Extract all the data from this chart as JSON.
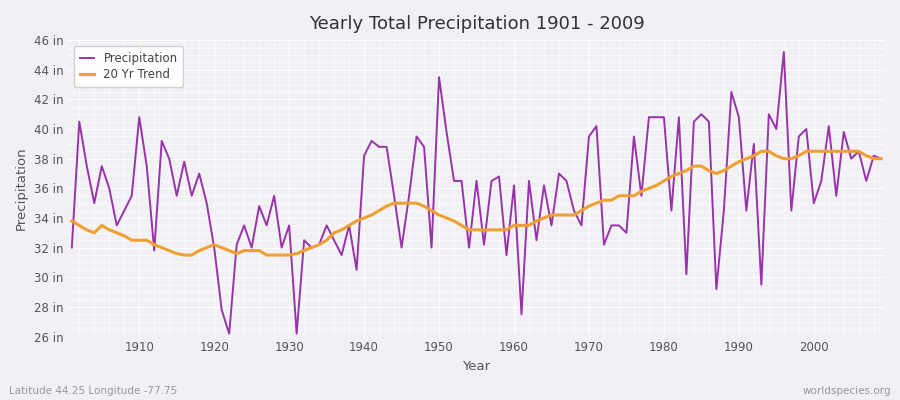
{
  "title": "Yearly Total Precipitation 1901 - 2009",
  "xlabel": "Year",
  "ylabel": "Precipitation",
  "subtitle": "Latitude 44.25 Longitude -77.75",
  "watermark": "worldspecies.org",
  "precip_color": "#9933aa",
  "trend_color": "#f0a030",
  "bg_color": "#f0f0f5",
  "ylim": [
    26,
    46
  ],
  "ytick_labels": [
    "26 in",
    "28 in",
    "30 in",
    "32 in",
    "34 in",
    "36 in",
    "38 in",
    "40 in",
    "42 in",
    "44 in",
    "46 in"
  ],
  "ytick_values": [
    26,
    28,
    30,
    32,
    34,
    36,
    38,
    40,
    42,
    44,
    46
  ],
  "xticks": [
    1910,
    1920,
    1930,
    1940,
    1950,
    1960,
    1970,
    1980,
    1990,
    2000
  ],
  "years": [
    1901,
    1902,
    1903,
    1904,
    1905,
    1906,
    1907,
    1908,
    1909,
    1910,
    1911,
    1912,
    1913,
    1914,
    1915,
    1916,
    1917,
    1918,
    1919,
    1920,
    1921,
    1922,
    1923,
    1924,
    1925,
    1926,
    1927,
    1928,
    1929,
    1930,
    1931,
    1932,
    1933,
    1934,
    1935,
    1936,
    1937,
    1938,
    1939,
    1940,
    1941,
    1942,
    1943,
    1944,
    1945,
    1946,
    1947,
    1948,
    1949,
    1950,
    1951,
    1952,
    1953,
    1954,
    1955,
    1956,
    1957,
    1958,
    1959,
    1960,
    1961,
    1962,
    1963,
    1964,
    1965,
    1966,
    1967,
    1968,
    1969,
    1970,
    1971,
    1972,
    1973,
    1974,
    1975,
    1976,
    1977,
    1978,
    1979,
    1980,
    1981,
    1982,
    1983,
    1984,
    1985,
    1986,
    1987,
    1988,
    1989,
    1990,
    1991,
    1992,
    1993,
    1994,
    1995,
    1996,
    1997,
    1998,
    1999,
    2000,
    2001,
    2002,
    2003,
    2004,
    2005,
    2006,
    2007,
    2008,
    2009
  ],
  "precip": [
    32.0,
    40.5,
    37.5,
    35.0,
    37.5,
    36.0,
    33.5,
    34.5,
    35.5,
    40.8,
    37.5,
    31.8,
    39.2,
    38.0,
    35.5,
    37.8,
    35.5,
    37.0,
    35.0,
    32.0,
    27.8,
    26.2,
    32.2,
    33.5,
    32.0,
    34.8,
    33.5,
    35.5,
    32.0,
    33.5,
    26.2,
    32.5,
    32.0,
    32.2,
    33.5,
    32.5,
    31.5,
    33.5,
    30.5,
    38.2,
    39.2,
    38.8,
    38.8,
    35.5,
    32.0,
    35.5,
    39.5,
    38.8,
    32.0,
    43.5,
    39.8,
    36.5,
    36.5,
    32.0,
    36.5,
    32.2,
    36.5,
    36.8,
    31.5,
    36.2,
    27.5,
    36.5,
    32.5,
    36.2,
    33.5,
    37.0,
    36.5,
    34.5,
    33.5,
    39.5,
    40.2,
    32.2,
    33.5,
    33.5,
    33.0,
    39.5,
    35.5,
    40.8,
    40.8,
    40.8,
    34.5,
    40.8,
    30.2,
    40.5,
    41.0,
    40.5,
    29.2,
    34.5,
    42.5,
    40.8,
    34.5,
    39.0,
    29.5,
    41.0,
    40.0,
    45.2,
    34.5,
    39.5,
    40.0,
    35.0,
    36.5,
    40.2,
    35.5,
    39.8,
    38.0,
    38.5,
    36.5,
    38.2,
    38.0
  ],
  "trend": [
    33.8,
    33.5,
    33.2,
    33.0,
    33.5,
    33.2,
    33.0,
    32.8,
    32.5,
    32.5,
    32.5,
    32.2,
    32.0,
    31.8,
    31.6,
    31.5,
    31.5,
    31.8,
    32.0,
    32.2,
    32.0,
    31.8,
    31.6,
    31.8,
    31.8,
    31.8,
    31.5,
    31.5,
    31.5,
    31.5,
    31.6,
    31.8,
    32.0,
    32.2,
    32.5,
    33.0,
    33.2,
    33.5,
    33.8,
    34.0,
    34.2,
    34.5,
    34.8,
    35.0,
    35.0,
    35.0,
    35.0,
    34.8,
    34.5,
    34.2,
    34.0,
    33.8,
    33.5,
    33.2,
    33.2,
    33.2,
    33.2,
    33.2,
    33.2,
    33.5,
    33.5,
    33.5,
    33.8,
    34.0,
    34.2,
    34.2,
    34.2,
    34.2,
    34.5,
    34.8,
    35.0,
    35.2,
    35.2,
    35.5,
    35.5,
    35.5,
    35.8,
    36.0,
    36.2,
    36.5,
    36.8,
    37.0,
    37.2,
    37.5,
    37.5,
    37.2,
    37.0,
    37.2,
    37.5,
    37.8,
    38.0,
    38.2,
    38.5,
    38.5,
    38.2,
    38.0,
    38.0,
    38.2,
    38.5,
    38.5,
    38.5,
    38.5,
    38.5,
    38.5,
    38.5,
    38.5,
    38.2,
    38.0,
    38.0
  ]
}
